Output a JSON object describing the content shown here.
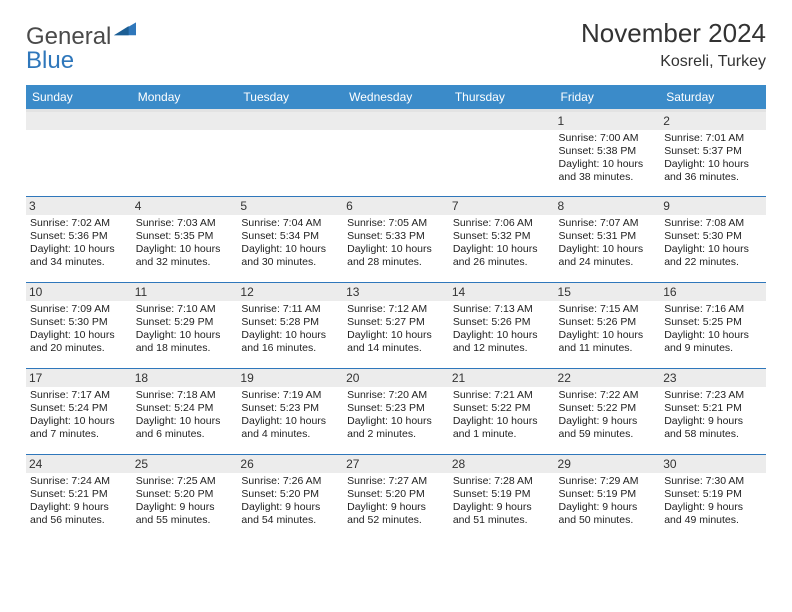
{
  "brand": {
    "word1": "General",
    "word2": "Blue"
  },
  "colors": {
    "header_bg": "#3b8bc9",
    "rule": "#2f77bb",
    "daybar": "#ececec"
  },
  "title": "November 2024",
  "location": "Kosreli, Turkey",
  "day_headers": [
    "Sunday",
    "Monday",
    "Tuesday",
    "Wednesday",
    "Thursday",
    "Friday",
    "Saturday"
  ],
  "weeks": [
    [
      {
        "n": "",
        "sunrise": "",
        "sunset": "",
        "daylight": ""
      },
      {
        "n": "",
        "sunrise": "",
        "sunset": "",
        "daylight": ""
      },
      {
        "n": "",
        "sunrise": "",
        "sunset": "",
        "daylight": ""
      },
      {
        "n": "",
        "sunrise": "",
        "sunset": "",
        "daylight": ""
      },
      {
        "n": "",
        "sunrise": "",
        "sunset": "",
        "daylight": ""
      },
      {
        "n": "1",
        "sunrise": "Sunrise: 7:00 AM",
        "sunset": "Sunset: 5:38 PM",
        "daylight": "Daylight: 10 hours and 38 minutes."
      },
      {
        "n": "2",
        "sunrise": "Sunrise: 7:01 AM",
        "sunset": "Sunset: 5:37 PM",
        "daylight": "Daylight: 10 hours and 36 minutes."
      }
    ],
    [
      {
        "n": "3",
        "sunrise": "Sunrise: 7:02 AM",
        "sunset": "Sunset: 5:36 PM",
        "daylight": "Daylight: 10 hours and 34 minutes."
      },
      {
        "n": "4",
        "sunrise": "Sunrise: 7:03 AM",
        "sunset": "Sunset: 5:35 PM",
        "daylight": "Daylight: 10 hours and 32 minutes."
      },
      {
        "n": "5",
        "sunrise": "Sunrise: 7:04 AM",
        "sunset": "Sunset: 5:34 PM",
        "daylight": "Daylight: 10 hours and 30 minutes."
      },
      {
        "n": "6",
        "sunrise": "Sunrise: 7:05 AM",
        "sunset": "Sunset: 5:33 PM",
        "daylight": "Daylight: 10 hours and 28 minutes."
      },
      {
        "n": "7",
        "sunrise": "Sunrise: 7:06 AM",
        "sunset": "Sunset: 5:32 PM",
        "daylight": "Daylight: 10 hours and 26 minutes."
      },
      {
        "n": "8",
        "sunrise": "Sunrise: 7:07 AM",
        "sunset": "Sunset: 5:31 PM",
        "daylight": "Daylight: 10 hours and 24 minutes."
      },
      {
        "n": "9",
        "sunrise": "Sunrise: 7:08 AM",
        "sunset": "Sunset: 5:30 PM",
        "daylight": "Daylight: 10 hours and 22 minutes."
      }
    ],
    [
      {
        "n": "10",
        "sunrise": "Sunrise: 7:09 AM",
        "sunset": "Sunset: 5:30 PM",
        "daylight": "Daylight: 10 hours and 20 minutes."
      },
      {
        "n": "11",
        "sunrise": "Sunrise: 7:10 AM",
        "sunset": "Sunset: 5:29 PM",
        "daylight": "Daylight: 10 hours and 18 minutes."
      },
      {
        "n": "12",
        "sunrise": "Sunrise: 7:11 AM",
        "sunset": "Sunset: 5:28 PM",
        "daylight": "Daylight: 10 hours and 16 minutes."
      },
      {
        "n": "13",
        "sunrise": "Sunrise: 7:12 AM",
        "sunset": "Sunset: 5:27 PM",
        "daylight": "Daylight: 10 hours and 14 minutes."
      },
      {
        "n": "14",
        "sunrise": "Sunrise: 7:13 AM",
        "sunset": "Sunset: 5:26 PM",
        "daylight": "Daylight: 10 hours and 12 minutes."
      },
      {
        "n": "15",
        "sunrise": "Sunrise: 7:15 AM",
        "sunset": "Sunset: 5:26 PM",
        "daylight": "Daylight: 10 hours and 11 minutes."
      },
      {
        "n": "16",
        "sunrise": "Sunrise: 7:16 AM",
        "sunset": "Sunset: 5:25 PM",
        "daylight": "Daylight: 10 hours and 9 minutes."
      }
    ],
    [
      {
        "n": "17",
        "sunrise": "Sunrise: 7:17 AM",
        "sunset": "Sunset: 5:24 PM",
        "daylight": "Daylight: 10 hours and 7 minutes."
      },
      {
        "n": "18",
        "sunrise": "Sunrise: 7:18 AM",
        "sunset": "Sunset: 5:24 PM",
        "daylight": "Daylight: 10 hours and 6 minutes."
      },
      {
        "n": "19",
        "sunrise": "Sunrise: 7:19 AM",
        "sunset": "Sunset: 5:23 PM",
        "daylight": "Daylight: 10 hours and 4 minutes."
      },
      {
        "n": "20",
        "sunrise": "Sunrise: 7:20 AM",
        "sunset": "Sunset: 5:23 PM",
        "daylight": "Daylight: 10 hours and 2 minutes."
      },
      {
        "n": "21",
        "sunrise": "Sunrise: 7:21 AM",
        "sunset": "Sunset: 5:22 PM",
        "daylight": "Daylight: 10 hours and 1 minute."
      },
      {
        "n": "22",
        "sunrise": "Sunrise: 7:22 AM",
        "sunset": "Sunset: 5:22 PM",
        "daylight": "Daylight: 9 hours and 59 minutes."
      },
      {
        "n": "23",
        "sunrise": "Sunrise: 7:23 AM",
        "sunset": "Sunset: 5:21 PM",
        "daylight": "Daylight: 9 hours and 58 minutes."
      }
    ],
    [
      {
        "n": "24",
        "sunrise": "Sunrise: 7:24 AM",
        "sunset": "Sunset: 5:21 PM",
        "daylight": "Daylight: 9 hours and 56 minutes."
      },
      {
        "n": "25",
        "sunrise": "Sunrise: 7:25 AM",
        "sunset": "Sunset: 5:20 PM",
        "daylight": "Daylight: 9 hours and 55 minutes."
      },
      {
        "n": "26",
        "sunrise": "Sunrise: 7:26 AM",
        "sunset": "Sunset: 5:20 PM",
        "daylight": "Daylight: 9 hours and 54 minutes."
      },
      {
        "n": "27",
        "sunrise": "Sunrise: 7:27 AM",
        "sunset": "Sunset: 5:20 PM",
        "daylight": "Daylight: 9 hours and 52 minutes."
      },
      {
        "n": "28",
        "sunrise": "Sunrise: 7:28 AM",
        "sunset": "Sunset: 5:19 PM",
        "daylight": "Daylight: 9 hours and 51 minutes."
      },
      {
        "n": "29",
        "sunrise": "Sunrise: 7:29 AM",
        "sunset": "Sunset: 5:19 PM",
        "daylight": "Daylight: 9 hours and 50 minutes."
      },
      {
        "n": "30",
        "sunrise": "Sunrise: 7:30 AM",
        "sunset": "Sunset: 5:19 PM",
        "daylight": "Daylight: 9 hours and 49 minutes."
      }
    ]
  ]
}
